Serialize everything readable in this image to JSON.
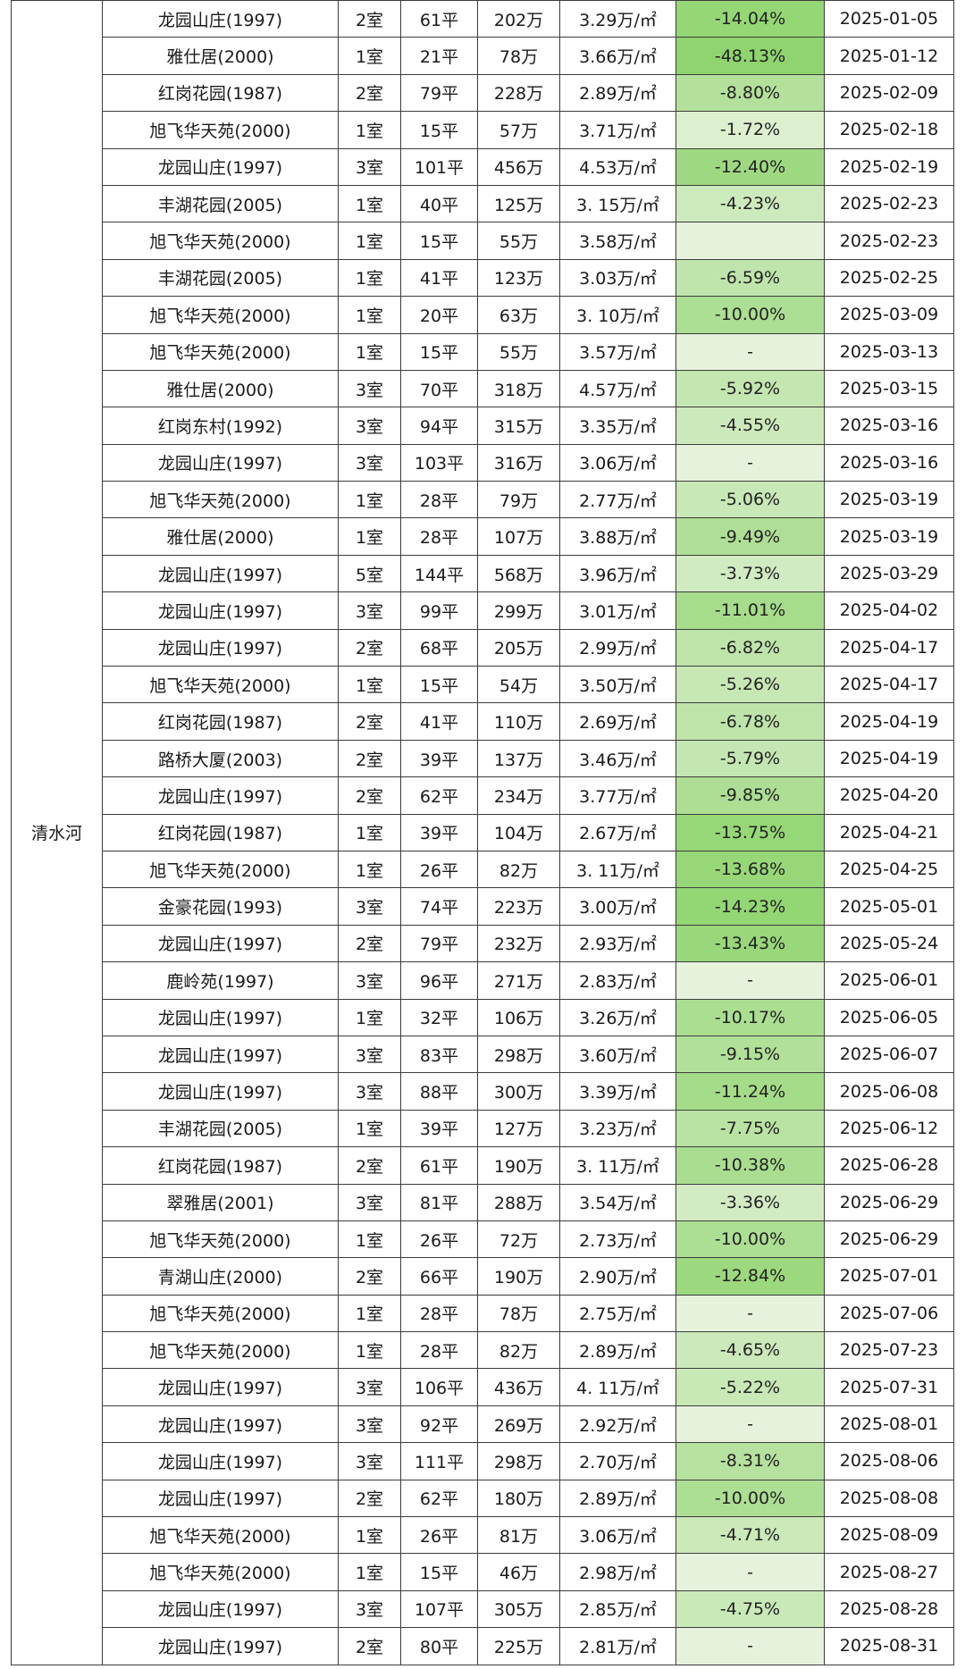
{
  "district": "清水河",
  "colors": {
    "border": "#3c3c3c",
    "green_strong": "#8fd46e",
    "green_light": "#e6f2dc"
  },
  "rows": [
    {
      "estate": "龙园山庄(1997)",
      "rooms": "2室",
      "area": "61平",
      "price": "202万",
      "unit_price": "3.29万/㎡",
      "change": "-14.04%",
      "date": "2025-01-05"
    },
    {
      "estate": "雅仕居(2000)",
      "rooms": "1室",
      "area": "21平",
      "price": "78万",
      "unit_price": "3.66万/㎡",
      "change": "-48.13%",
      "date": "2025-01-12"
    },
    {
      "estate": "红岗花园(1987)",
      "rooms": "2室",
      "area": "79平",
      "price": "228万",
      "unit_price": "2.89万/㎡",
      "change": "-8.80%",
      "date": "2025-02-09"
    },
    {
      "estate": "旭飞华天苑(2000)",
      "rooms": "1室",
      "area": "15平",
      "price": "57万",
      "unit_price": "3.71万/㎡",
      "change": "-1.72%",
      "date": "2025-02-18"
    },
    {
      "estate": "龙园山庄(1997)",
      "rooms": "3室",
      "area": "101平",
      "price": "456万",
      "unit_price": "4.53万/㎡",
      "change": "-12.40%",
      "date": "2025-02-19"
    },
    {
      "estate": "丰湖花园(2005)",
      "rooms": "1室",
      "area": "40平",
      "price": "125万",
      "unit_price": "3. 15万/㎡",
      "change": "-4.23%",
      "date": "2025-02-23"
    },
    {
      "estate": "旭飞华天苑(2000)",
      "rooms": "1室",
      "area": "15平",
      "price": "55万",
      "unit_price": "3.58万/㎡",
      "change": "",
      "date": "2025-02-23"
    },
    {
      "estate": "丰湖花园(2005)",
      "rooms": "1室",
      "area": "41平",
      "price": "123万",
      "unit_price": "3.03万/㎡",
      "change": "-6.59%",
      "date": "2025-02-25"
    },
    {
      "estate": "旭飞华天苑(2000)",
      "rooms": "1室",
      "area": "20平",
      "price": "63万",
      "unit_price": "3. 10万/㎡",
      "change": "-10.00%",
      "date": "2025-03-09"
    },
    {
      "estate": "旭飞华天苑(2000)",
      "rooms": "1室",
      "area": "15平",
      "price": "55万",
      "unit_price": "3.57万/㎡",
      "change": "-",
      "date": "2025-03-13"
    },
    {
      "estate": "雅仕居(2000)",
      "rooms": "3室",
      "area": "70平",
      "price": "318万",
      "unit_price": "4.57万/㎡",
      "change": "-5.92%",
      "date": "2025-03-15"
    },
    {
      "estate": "红岗东村(1992)",
      "rooms": "3室",
      "area": "94平",
      "price": "315万",
      "unit_price": "3.35万/㎡",
      "change": "-4.55%",
      "date": "2025-03-16"
    },
    {
      "estate": "龙园山庄(1997)",
      "rooms": "3室",
      "area": "103平",
      "price": "316万",
      "unit_price": "3.06万/㎡",
      "change": "-",
      "date": "2025-03-16"
    },
    {
      "estate": "旭飞华天苑(2000)",
      "rooms": "1室",
      "area": "28平",
      "price": "79万",
      "unit_price": "2.77万/㎡",
      "change": "-5.06%",
      "date": "2025-03-19"
    },
    {
      "estate": "雅仕居(2000)",
      "rooms": "1室",
      "area": "28平",
      "price": "107万",
      "unit_price": "3.88万/㎡",
      "change": "-9.49%",
      "date": "2025-03-19"
    },
    {
      "estate": "龙园山庄(1997)",
      "rooms": "5室",
      "area": "144平",
      "price": "568万",
      "unit_price": "3.96万/㎡",
      "change": "-3.73%",
      "date": "2025-03-29"
    },
    {
      "estate": "龙园山庄(1997)",
      "rooms": "3室",
      "area": "99平",
      "price": "299万",
      "unit_price": "3.01万/㎡",
      "change": "-11.01%",
      "date": "2025-04-02"
    },
    {
      "estate": "龙园山庄(1997)",
      "rooms": "2室",
      "area": "68平",
      "price": "205万",
      "unit_price": "2.99万/㎡",
      "change": "-6.82%",
      "date": "2025-04-17"
    },
    {
      "estate": "旭飞华天苑(2000)",
      "rooms": "1室",
      "area": "15平",
      "price": "54万",
      "unit_price": "3.50万/㎡",
      "change": "-5.26%",
      "date": "2025-04-17"
    },
    {
      "estate": "红岗花园(1987)",
      "rooms": "2室",
      "area": "41平",
      "price": "110万",
      "unit_price": "2.69万/㎡",
      "change": "-6.78%",
      "date": "2025-04-19"
    },
    {
      "estate": "路桥大厦(2003)",
      "rooms": "2室",
      "area": "39平",
      "price": "137万",
      "unit_price": "3.46万/㎡",
      "change": "-5.79%",
      "date": "2025-04-19"
    },
    {
      "estate": "龙园山庄(1997)",
      "rooms": "2室",
      "area": "62平",
      "price": "234万",
      "unit_price": "3.77万/㎡",
      "change": "-9.85%",
      "date": "2025-04-20"
    },
    {
      "estate": "红岗花园(1987)",
      "rooms": "1室",
      "area": "39平",
      "price": "104万",
      "unit_price": "2.67万/㎡",
      "change": "-13.75%",
      "date": "2025-04-21"
    },
    {
      "estate": "旭飞华天苑(2000)",
      "rooms": "1室",
      "area": "26平",
      "price": "82万",
      "unit_price": "3. 11万/㎡",
      "change": "-13.68%",
      "date": "2025-04-25"
    },
    {
      "estate": "金豪花园(1993)",
      "rooms": "3室",
      "area": "74平",
      "price": "223万",
      "unit_price": "3.00万/㎡",
      "change": "-14.23%",
      "date": "2025-05-01"
    },
    {
      "estate": "龙园山庄(1997)",
      "rooms": "2室",
      "area": "79平",
      "price": "232万",
      "unit_price": "2.93万/㎡",
      "change": "-13.43%",
      "date": "2025-05-24"
    },
    {
      "estate": "鹿岭苑(1997)",
      "rooms": "3室",
      "area": "96平",
      "price": "271万",
      "unit_price": "2.83万/㎡",
      "change": "-",
      "date": "2025-06-01"
    },
    {
      "estate": "龙园山庄(1997)",
      "rooms": "1室",
      "area": "32平",
      "price": "106万",
      "unit_price": "3.26万/㎡",
      "change": "-10.17%",
      "date": "2025-06-05"
    },
    {
      "estate": "龙园山庄(1997)",
      "rooms": "3室",
      "area": "83平",
      "price": "298万",
      "unit_price": "3.60万/㎡",
      "change": "-9.15%",
      "date": "2025-06-07"
    },
    {
      "estate": "龙园山庄(1997)",
      "rooms": "3室",
      "area": "88平",
      "price": "300万",
      "unit_price": "3.39万/㎡",
      "change": "-11.24%",
      "date": "2025-06-08"
    },
    {
      "estate": "丰湖花园(2005)",
      "rooms": "1室",
      "area": "39平",
      "price": "127万",
      "unit_price": "3.23万/㎡",
      "change": "-7.75%",
      "date": "2025-06-12"
    },
    {
      "estate": "红岗花园(1987)",
      "rooms": "2室",
      "area": "61平",
      "price": "190万",
      "unit_price": "3. 11万/㎡",
      "change": "-10.38%",
      "date": "2025-06-28"
    },
    {
      "estate": "翠雅居(2001)",
      "rooms": "3室",
      "area": "81平",
      "price": "288万",
      "unit_price": "3.54万/㎡",
      "change": "-3.36%",
      "date": "2025-06-29"
    },
    {
      "estate": "旭飞华天苑(2000)",
      "rooms": "1室",
      "area": "26平",
      "price": "72万",
      "unit_price": "2.73万/㎡",
      "change": "-10.00%",
      "date": "2025-06-29"
    },
    {
      "estate": "青湖山庄(2000)",
      "rooms": "2室",
      "area": "66平",
      "price": "190万",
      "unit_price": "2.90万/㎡",
      "change": "-12.84%",
      "date": "2025-07-01"
    },
    {
      "estate": "旭飞华天苑(2000)",
      "rooms": "1室",
      "area": "28平",
      "price": "78万",
      "unit_price": "2.75万/㎡",
      "change": "-",
      "date": "2025-07-06"
    },
    {
      "estate": "旭飞华天苑(2000)",
      "rooms": "1室",
      "area": "28平",
      "price": "82万",
      "unit_price": "2.89万/㎡",
      "change": "-4.65%",
      "date": "2025-07-23"
    },
    {
      "estate": "龙园山庄(1997)",
      "rooms": "3室",
      "area": "106平",
      "price": "436万",
      "unit_price": "4. 11万/㎡",
      "change": "-5.22%",
      "date": "2025-07-31"
    },
    {
      "estate": "龙园山庄(1997)",
      "rooms": "3室",
      "area": "92平",
      "price": "269万",
      "unit_price": "2.92万/㎡",
      "change": "-",
      "date": "2025-08-01"
    },
    {
      "estate": "龙园山庄(1997)",
      "rooms": "3室",
      "area": "111平",
      "price": "298万",
      "unit_price": "2.70万/㎡",
      "change": "-8.31%",
      "date": "2025-08-06"
    },
    {
      "estate": "龙园山庄(1997)",
      "rooms": "2室",
      "area": "62平",
      "price": "180万",
      "unit_price": "2.89万/㎡",
      "change": "-10.00%",
      "date": "2025-08-08"
    },
    {
      "estate": "旭飞华天苑(2000)",
      "rooms": "1室",
      "area": "26平",
      "price": "81万",
      "unit_price": "3.06万/㎡",
      "change": "-4.71%",
      "date": "2025-08-09"
    },
    {
      "estate": "旭飞华天苑(2000)",
      "rooms": "1室",
      "area": "15平",
      "price": "46万",
      "unit_price": "2.98万/㎡",
      "change": "-",
      "date": "2025-08-27"
    },
    {
      "estate": "龙园山庄(1997)",
      "rooms": "3室",
      "area": "107平",
      "price": "305万",
      "unit_price": "2.85万/㎡",
      "change": "-4.75%",
      "date": "2025-08-28"
    },
    {
      "estate": "龙园山庄(1997)",
      "rooms": "2室",
      "area": "80平",
      "price": "225万",
      "unit_price": "2.81万/㎡",
      "change": "-",
      "date": "2025-08-31"
    }
  ]
}
